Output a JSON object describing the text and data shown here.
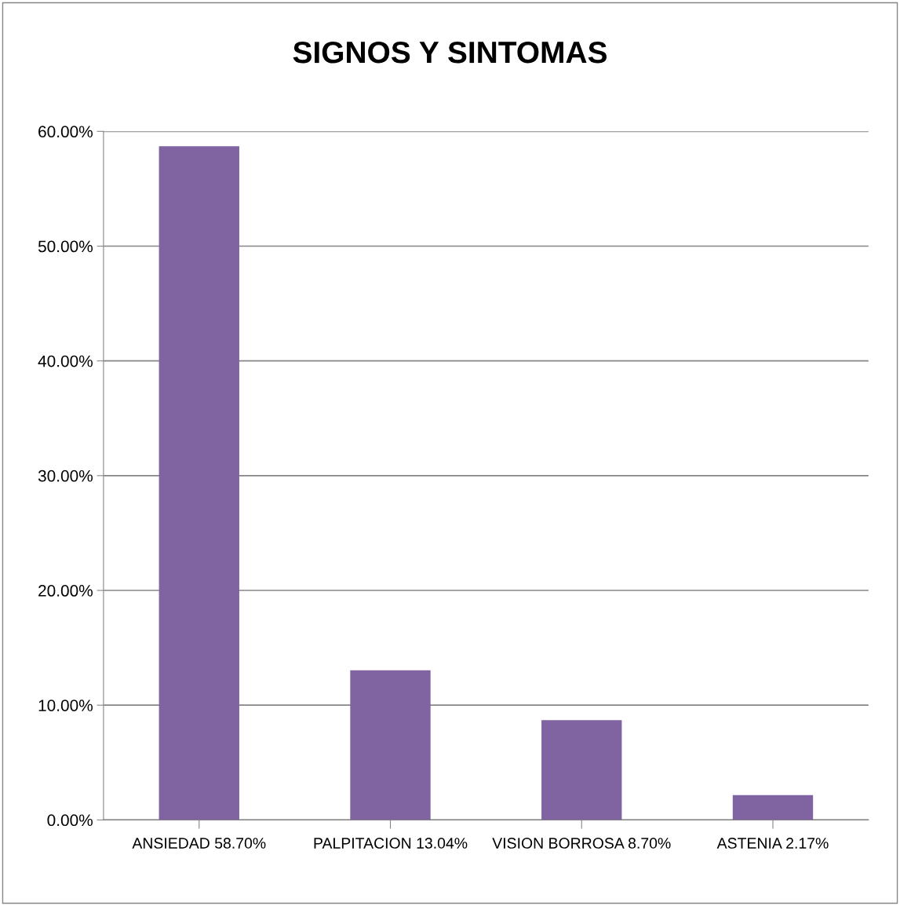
{
  "chart_data": {
    "type": "bar",
    "title": "SIGNOS Y SINTOMAS",
    "categories": [
      "ANSIEDAD 58.70%",
      "PALPITACION 13.04%",
      "VISION BORROSA 8.70%",
      "ASTENIA 2.17%"
    ],
    "values": [
      58.7,
      13.04,
      8.7,
      2.17
    ],
    "color": "#8064a2",
    "ylim": [
      0,
      60
    ],
    "yticks": [
      {
        "value": 0,
        "label": "0.00%"
      },
      {
        "value": 10,
        "label": "10.00%"
      },
      {
        "value": 20,
        "label": "20.00%"
      },
      {
        "value": 30,
        "label": "30.00%"
      },
      {
        "value": 40,
        "label": "40.00%"
      },
      {
        "value": 50,
        "label": "50.00%"
      },
      {
        "value": 60,
        "label": "60.00%"
      }
    ],
    "grid": "y",
    "legend": false
  }
}
